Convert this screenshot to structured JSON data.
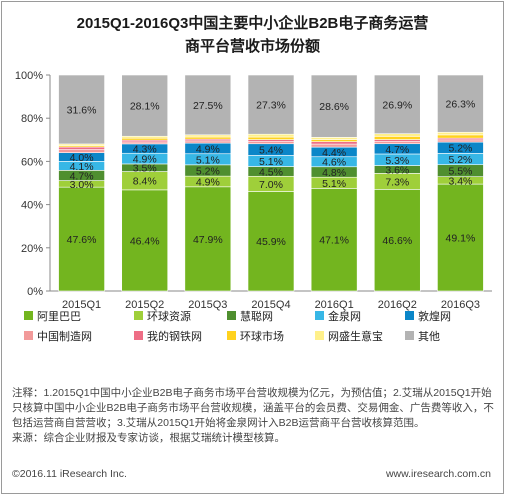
{
  "chart_data": {
    "type": "bar",
    "stacked": true,
    "percent": true,
    "title": "2015Q1-2016Q3中国主要中小企业B2B电子商务运营商平台营收市场份额",
    "title_line1": "2015Q1-2016Q3中国主要中小企业B2B电子商务运营",
    "title_line2": "商平台营收市场份额",
    "categories": [
      "2015Q1",
      "2015Q2",
      "2015Q3",
      "2015Q4",
      "2016Q1",
      "2016Q2",
      "2016Q3"
    ],
    "yticks": [
      "0%",
      "20%",
      "40%",
      "60%",
      "80%",
      "100%"
    ],
    "ylim": [
      0,
      100
    ],
    "grid": false,
    "legend_position": "bottom",
    "series": [
      {
        "name": "阿里巴巴",
        "color": "#73b51f",
        "values": [
          47.6,
          46.4,
          47.9,
          45.9,
          47.1,
          46.6,
          49.1
        ],
        "labels": [
          "47.6%",
          "46.4%",
          "47.9%",
          "45.9%",
          "47.1%",
          "46.6%",
          "49.1%"
        ]
      },
      {
        "name": "环球资源",
        "color": "#9fcf3a",
        "values": [
          3.0,
          8.4,
          4.9,
          7.0,
          5.1,
          7.3,
          3.4
        ],
        "labels": [
          "3.0%",
          "8.4%",
          "4.9%",
          "7.0%",
          "5.1%",
          "7.3%",
          "3.4%"
        ]
      },
      {
        "name": "慧聪网",
        "color": "#4f8f2f",
        "values": [
          4.7,
          3.5,
          5.2,
          4.5,
          4.8,
          3.6,
          5.5
        ],
        "labels": [
          "4.7%",
          "3.5%",
          "5.2%",
          "4.5%",
          "4.8%",
          "3.6%",
          "5.5%"
        ]
      },
      {
        "name": "金泉网",
        "color": "#37b7e6",
        "values": [
          4.1,
          4.9,
          5.1,
          5.1,
          4.6,
          5.3,
          5.2
        ],
        "labels": [
          "4.1%",
          "4.9%",
          "5.1%",
          "5.1%",
          "4.6%",
          "5.3%",
          "5.2%"
        ]
      },
      {
        "name": "敦煌网",
        "color": "#0b86c8",
        "values": [
          4.0,
          4.3,
          4.9,
          5.4,
          4.4,
          4.7,
          5.2
        ],
        "labels": [
          "4.0%",
          "4.3%",
          "4.9%",
          "5.4%",
          "4.4%",
          "4.7%",
          "5.2%"
        ]
      },
      {
        "name": "中国制造网",
        "color": "#f29a9a",
        "values": [
          1.4,
          0.9,
          1.0,
          1.0,
          1.4,
          1.0,
          1.0
        ],
        "labels": []
      },
      {
        "name": "我的钢铁网",
        "color": "#ee6e86",
        "values": [
          1.2,
          0.8,
          0.8,
          0.9,
          1.1,
          0.9,
          0.8
        ],
        "labels": []
      },
      {
        "name": "环球市场",
        "color": "#ffd21e",
        "values": [
          0.6,
          0.9,
          1.0,
          1.2,
          1.0,
          1.5,
          1.5
        ],
        "labels": []
      },
      {
        "name": "网盛生意宝",
        "color": "#fff08a",
        "values": [
          0.8,
          0.9,
          1.0,
          1.3,
          1.0,
          1.2,
          1.2
        ],
        "labels": []
      },
      {
        "name": "其他",
        "color": "#b3b3b3",
        "values": [
          31.6,
          28.1,
          27.5,
          27.3,
          28.6,
          26.9,
          26.3
        ],
        "labels": [
          "31.6%",
          "28.1%",
          "27.5%",
          "27.3%",
          "28.6%",
          "26.9%",
          "26.3%"
        ]
      }
    ]
  },
  "notes": {
    "text": "注释：1.2015Q1中国中小企业B2B电子商务市场平台营收规模为亿元，为预估值；2.艾瑞从2015Q1开始只核算中国中小企业B2B电子商务市场平台营收规模，涵盖平台的会员费、交易佣金、广告费等收入，不包括运营商自营营收；3.艾瑞从2015Q1开始将金泉网计入B2B运营商平台营收核算范围。",
    "source": "来源：综合企业财报及专家访谈，根据艾瑞统计模型核算。"
  },
  "footer": {
    "copyright": "©2016.11 iResearch Inc.",
    "website": "www.iresearch.com.cn"
  }
}
